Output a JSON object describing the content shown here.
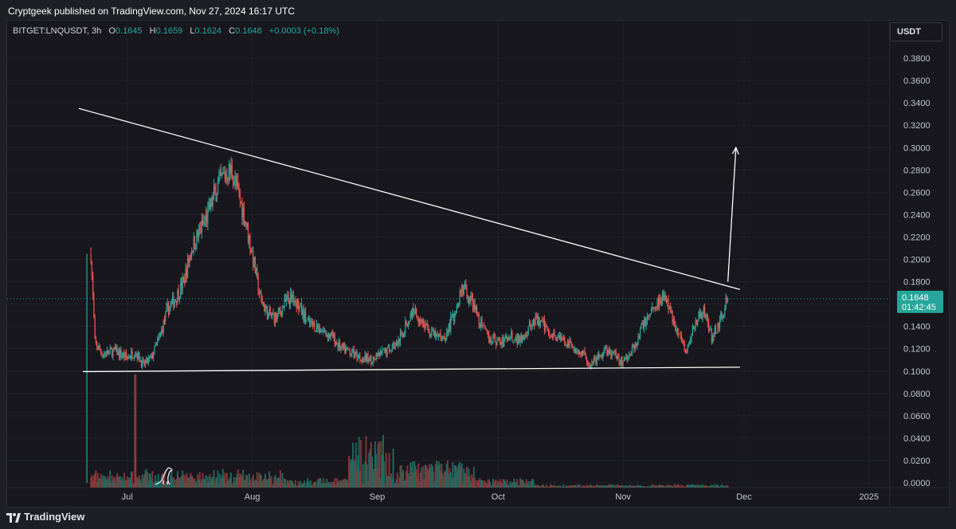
{
  "header": {
    "published_by": "Cryptgeek published on TradingView.com, Nov 27, 2024 16:17 UTC"
  },
  "symbol_bar": {
    "symbol": "BITGET:LNQUSDT, 3h",
    "o_label": "O",
    "o_value": "0.1645",
    "h_label": "H",
    "h_value": "0.1659",
    "l_label": "L",
    "l_value": "0.1624",
    "c_label": "C",
    "c_value": "0.1648",
    "change": "+0.0003 (+0.18%)"
  },
  "currency": "USDT",
  "footer": {
    "brand": "TradingView"
  },
  "colors": {
    "up": "#26a69a",
    "down": "#ef5350",
    "up_volume": "#1f6e66",
    "down_volume": "#8a3a3a",
    "trendline": "#ffffff",
    "last_price_label": "#26a69a"
  },
  "chart_data": {
    "type": "candlestick",
    "interval": "3h",
    "y_axis": {
      "min": 0,
      "max": 0.39,
      "tick_labels": [
        "0.3800",
        "0.3600",
        "0.3400",
        "0.3200",
        "0.3000",
        "0.2800",
        "0.2600",
        "0.2400",
        "0.2200",
        "0.2000",
        "0.1800",
        "0.1600",
        "0.1400",
        "0.1200",
        "0.1000",
        "0.0800",
        "0.0600",
        "0.0400",
        "0.0200",
        "0.0000"
      ],
      "tick_values": [
        0.38,
        0.36,
        0.34,
        0.32,
        0.3,
        0.28,
        0.26,
        0.24,
        0.22,
        0.2,
        0.18,
        0.16,
        0.14,
        0.12,
        0.1,
        0.08,
        0.06,
        0.04,
        0.02,
        0.0
      ]
    },
    "x_axis": {
      "start": "2024-06-20",
      "end": "2025-01-05",
      "tick_labels": [
        "Jul",
        "Aug",
        "Sep",
        "Oct",
        "Nov",
        "Dec",
        "2025"
      ],
      "tick_dates": [
        "2024-07-01",
        "2024-08-01",
        "2024-09-01",
        "2024-10-01",
        "2024-11-01",
        "2024-12-01",
        "2025-01-01"
      ]
    },
    "last_price": {
      "value": 0.1648,
      "price_label": "0.1648",
      "countdown_label": "01:42:45"
    },
    "price_path": [
      [
        "2024-06-22",
        0.205
      ],
      [
        "2024-06-23",
        0.125
      ],
      [
        "2024-06-25",
        0.115
      ],
      [
        "2024-06-28",
        0.118
      ],
      [
        "2024-07-01",
        0.112
      ],
      [
        "2024-07-03",
        0.118
      ],
      [
        "2024-07-05",
        0.105
      ],
      [
        "2024-07-07",
        0.112
      ],
      [
        "2024-07-09",
        0.13
      ],
      [
        "2024-07-11",
        0.155
      ],
      [
        "2024-07-13",
        0.165
      ],
      [
        "2024-07-15",
        0.18
      ],
      [
        "2024-07-17",
        0.21
      ],
      [
        "2024-07-19",
        0.225
      ],
      [
        "2024-07-21",
        0.24
      ],
      [
        "2024-07-23",
        0.262
      ],
      [
        "2024-07-25",
        0.275
      ],
      [
        "2024-07-27",
        0.28
      ],
      [
        "2024-07-28",
        0.265
      ],
      [
        "2024-07-30",
        0.24
      ],
      [
        "2024-08-01",
        0.205
      ],
      [
        "2024-08-03",
        0.165
      ],
      [
        "2024-08-05",
        0.15
      ],
      [
        "2024-08-07",
        0.148
      ],
      [
        "2024-08-09",
        0.16
      ],
      [
        "2024-08-11",
        0.168
      ],
      [
        "2024-08-13",
        0.155
      ],
      [
        "2024-08-15",
        0.142
      ],
      [
        "2024-08-17",
        0.14
      ],
      [
        "2024-08-19",
        0.135
      ],
      [
        "2024-08-21",
        0.13
      ],
      [
        "2024-08-23",
        0.12
      ],
      [
        "2024-08-25",
        0.118
      ],
      [
        "2024-08-28",
        0.112
      ],
      [
        "2024-08-31",
        0.11
      ],
      [
        "2024-09-03",
        0.118
      ],
      [
        "2024-09-06",
        0.125
      ],
      [
        "2024-09-08",
        0.14
      ],
      [
        "2024-09-10",
        0.155
      ],
      [
        "2024-09-12",
        0.145
      ],
      [
        "2024-09-14",
        0.135
      ],
      [
        "2024-09-16",
        0.13
      ],
      [
        "2024-09-18",
        0.132
      ],
      [
        "2024-09-20",
        0.15
      ],
      [
        "2024-09-22",
        0.175
      ],
      [
        "2024-09-24",
        0.165
      ],
      [
        "2024-09-26",
        0.148
      ],
      [
        "2024-09-28",
        0.132
      ],
      [
        "2024-09-30",
        0.128
      ],
      [
        "2024-10-02",
        0.125
      ],
      [
        "2024-10-04",
        0.132
      ],
      [
        "2024-10-06",
        0.128
      ],
      [
        "2024-10-08",
        0.135
      ],
      [
        "2024-10-10",
        0.145
      ],
      [
        "2024-10-12",
        0.142
      ],
      [
        "2024-10-14",
        0.135
      ],
      [
        "2024-10-16",
        0.13
      ],
      [
        "2024-10-18",
        0.125
      ],
      [
        "2024-10-20",
        0.12
      ],
      [
        "2024-10-22",
        0.115
      ],
      [
        "2024-10-24",
        0.105
      ],
      [
        "2024-10-26",
        0.112
      ],
      [
        "2024-10-28",
        0.118
      ],
      [
        "2024-10-30",
        0.114
      ],
      [
        "2024-11-01",
        0.108
      ],
      [
        "2024-11-03",
        0.118
      ],
      [
        "2024-11-05",
        0.132
      ],
      [
        "2024-11-07",
        0.15
      ],
      [
        "2024-11-09",
        0.16
      ],
      [
        "2024-11-11",
        0.168
      ],
      [
        "2024-11-13",
        0.15
      ],
      [
        "2024-11-15",
        0.13
      ],
      [
        "2024-11-17",
        0.12
      ],
      [
        "2024-11-19",
        0.145
      ],
      [
        "2024-11-21",
        0.155
      ],
      [
        "2024-11-23",
        0.13
      ],
      [
        "2024-11-25",
        0.145
      ],
      [
        "2024-11-27",
        0.1648
      ]
    ],
    "drawings": [
      {
        "type": "trendline",
        "from": [
          "2024-06-19",
          0.335
        ],
        "to": [
          "2024-11-30",
          0.173
        ]
      },
      {
        "type": "trendline",
        "from": [
          "2024-06-20",
          0.0995
        ],
        "to": [
          "2024-11-30",
          0.1035
        ]
      },
      {
        "type": "arrow",
        "from": [
          "2024-11-27",
          0.18
        ],
        "to": [
          "2024-11-29",
          0.3
        ]
      }
    ]
  }
}
